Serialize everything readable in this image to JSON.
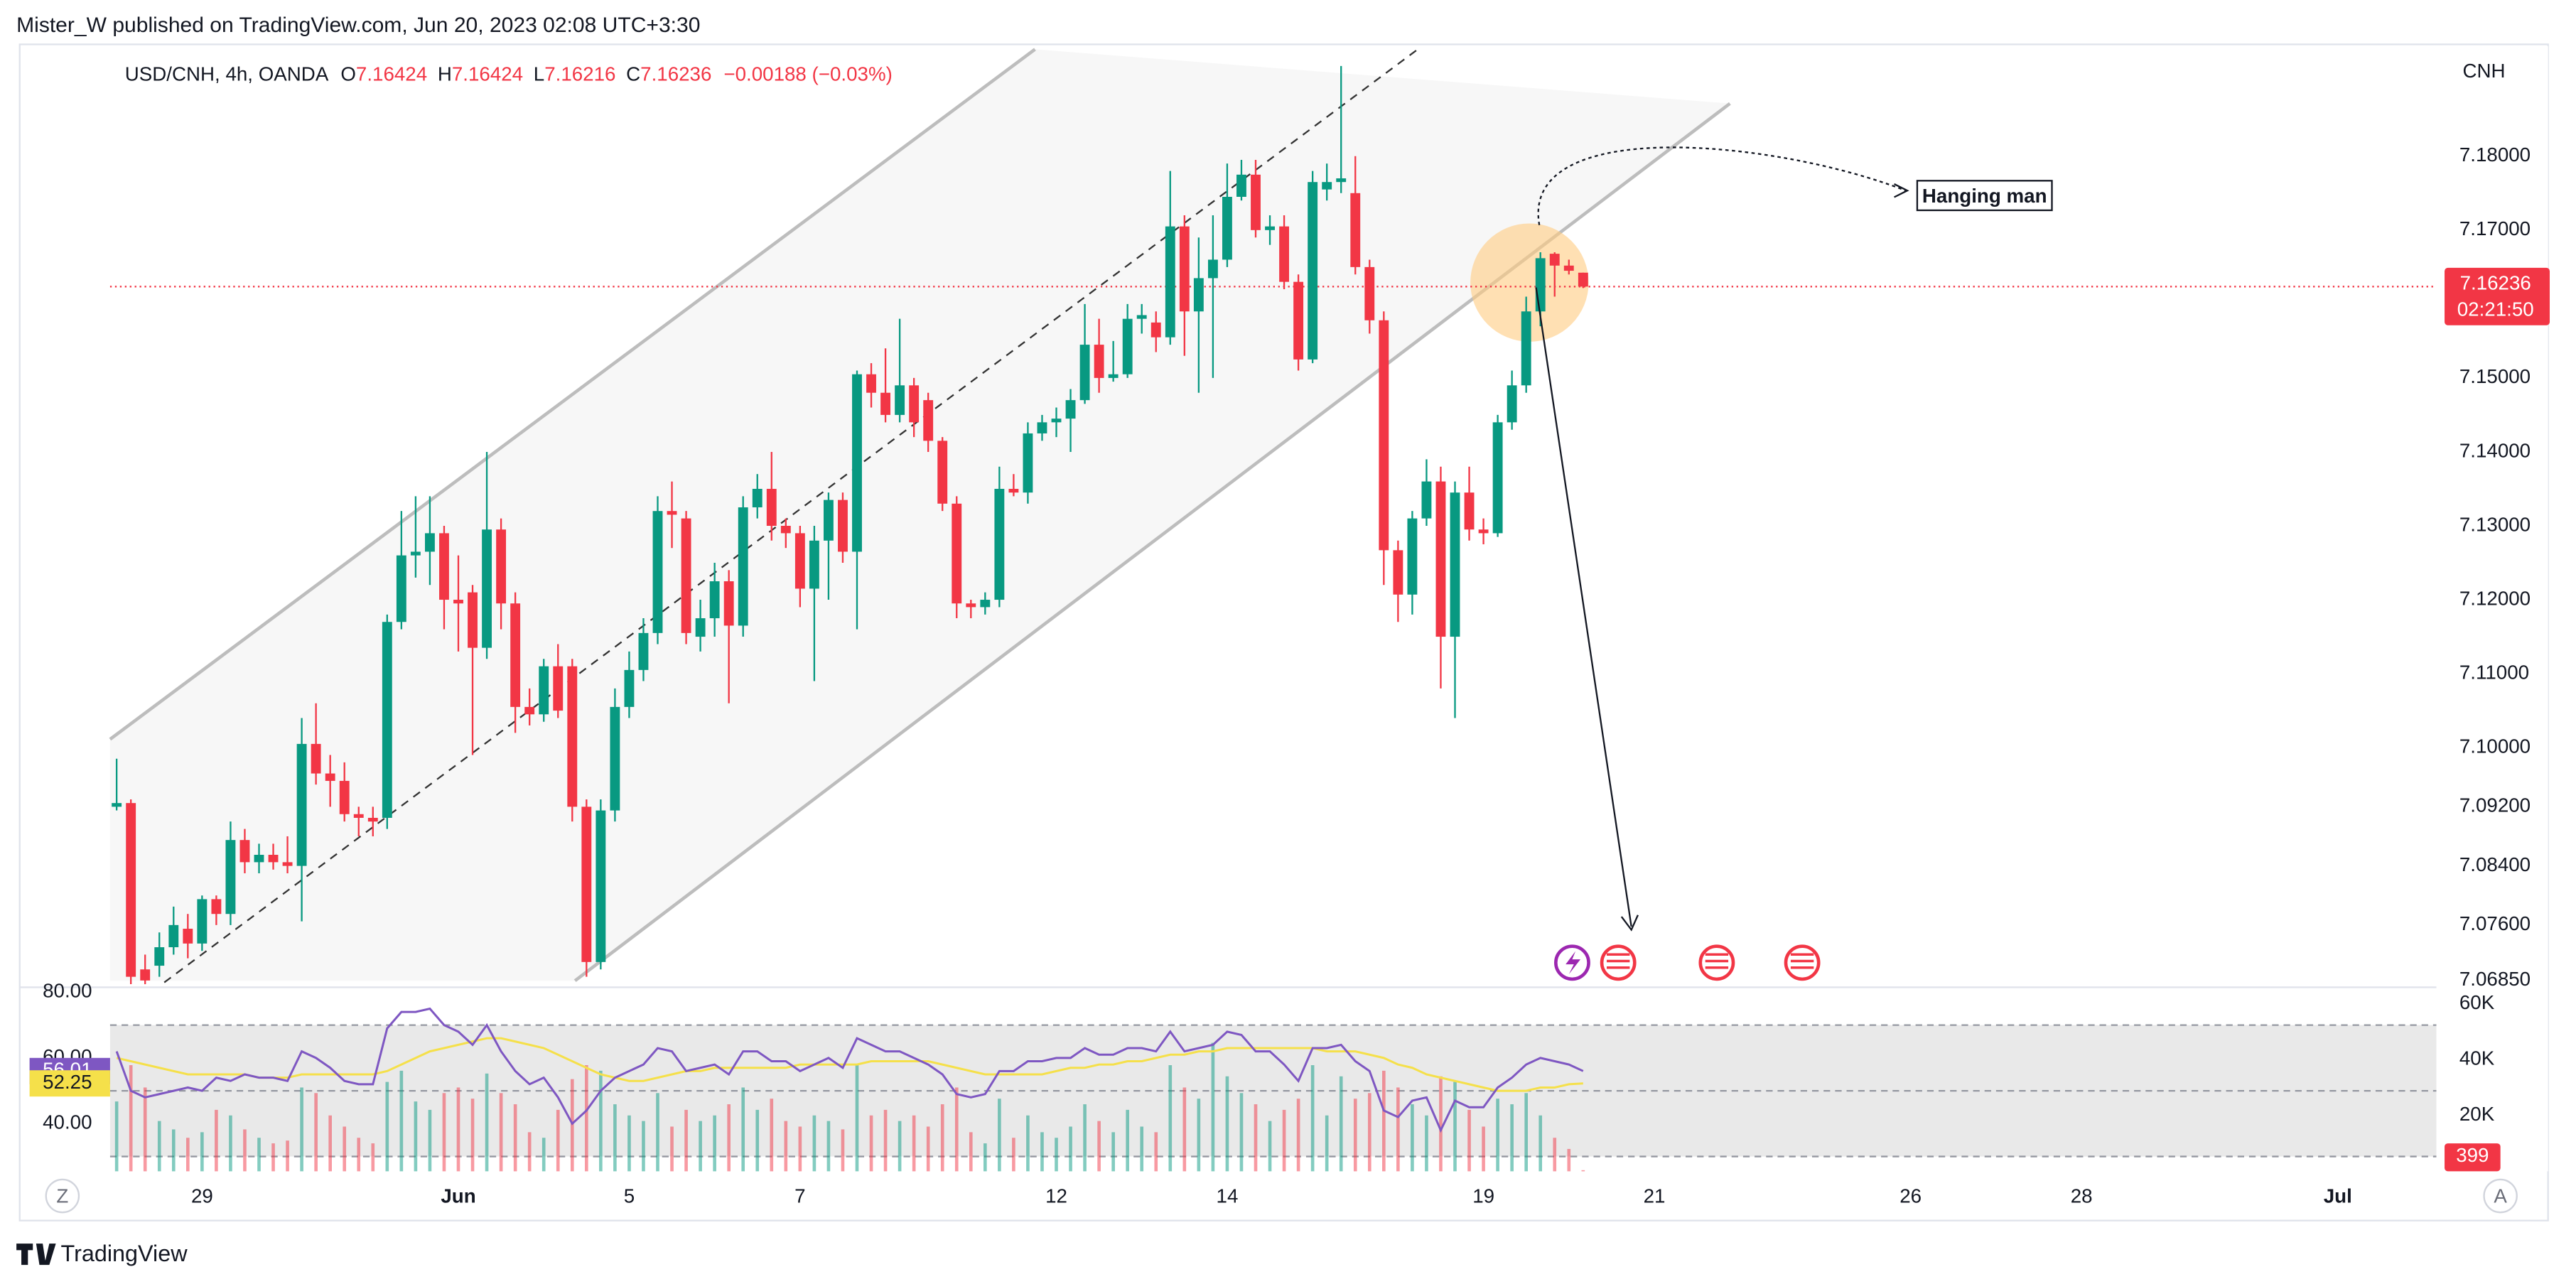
{
  "header": {
    "attribution": "Mister_W published on TradingView.com, Jun 20, 2023 02:08 UTC+3:30",
    "symbol": "USD/CNH, 4h, OANDA",
    "ohlc_letters": [
      "O",
      "H",
      "L",
      "C"
    ],
    "change": "−0.00188 (−0.03%)"
  },
  "chart_data": {
    "type": "candlestick",
    "currency": "CNH",
    "up_color": "#089981",
    "down_color": "#f23645",
    "grid": true,
    "candles": [
      [
        7.092,
        7.0985,
        7.0915,
        7.0925
      ],
      [
        7.0925,
        7.093,
        7.068,
        7.069
      ],
      [
        7.07,
        7.072,
        7.068,
        7.0685
      ],
      [
        7.0705,
        7.075,
        7.069,
        7.073
      ],
      [
        7.073,
        7.0785,
        7.072,
        7.076
      ],
      [
        7.0755,
        7.0775,
        7.0715,
        7.0735
      ],
      [
        7.0735,
        7.08,
        7.0725,
        7.0795
      ],
      [
        7.0795,
        7.08,
        7.076,
        7.0775
      ],
      [
        7.0775,
        7.09,
        7.076,
        7.0875
      ],
      [
        7.0875,
        7.089,
        7.083,
        7.0845
      ],
      [
        7.0845,
        7.087,
        7.083,
        7.0855
      ],
      [
        7.0855,
        7.087,
        7.0835,
        7.0845
      ],
      [
        7.0845,
        7.088,
        7.083,
        7.084
      ],
      [
        7.084,
        7.104,
        7.0765,
        7.1005
      ],
      [
        7.1005,
        7.106,
        7.095,
        7.0965
      ],
      [
        7.0965,
        7.099,
        7.092,
        7.0955
      ],
      [
        7.0955,
        7.098,
        7.09,
        7.091
      ],
      [
        7.091,
        7.092,
        7.088,
        7.0905
      ],
      [
        7.0905,
        7.092,
        7.088,
        7.09
      ],
      [
        7.0905,
        7.118,
        7.089,
        7.117
      ],
      [
        7.117,
        7.132,
        7.116,
        7.126
      ],
      [
        7.126,
        7.134,
        7.123,
        7.1265
      ],
      [
        7.1265,
        7.134,
        7.122,
        7.129
      ],
      [
        7.129,
        7.13,
        7.116,
        7.12
      ],
      [
        7.12,
        7.126,
        7.113,
        7.1195
      ],
      [
        7.121,
        7.122,
        7.099,
        7.1135
      ],
      [
        7.1135,
        7.14,
        7.112,
        7.1295
      ],
      [
        7.1295,
        7.131,
        7.116,
        7.1195
      ],
      [
        7.1195,
        7.121,
        7.102,
        7.1055
      ],
      [
        7.1055,
        7.108,
        7.103,
        7.1045
      ],
      [
        7.1045,
        7.112,
        7.1035,
        7.111
      ],
      [
        7.111,
        7.114,
        7.104,
        7.105
      ],
      [
        7.111,
        7.112,
        7.09,
        7.092
      ],
      [
        7.092,
        7.093,
        7.069,
        7.071
      ],
      [
        7.071,
        7.093,
        7.07,
        7.0915
      ],
      [
        7.0915,
        7.108,
        7.09,
        7.1055
      ],
      [
        7.1055,
        7.113,
        7.104,
        7.1105
      ],
      [
        7.1105,
        7.1175,
        7.109,
        7.1155
      ],
      [
        7.1155,
        7.134,
        7.114,
        7.132
      ],
      [
        7.132,
        7.136,
        7.127,
        7.1315
      ],
      [
        7.131,
        7.132,
        7.114,
        7.1155
      ],
      [
        7.115,
        7.12,
        7.113,
        7.1175
      ],
      [
        7.1175,
        7.125,
        7.115,
        7.1225
      ],
      [
        7.1225,
        7.124,
        7.106,
        7.1165
      ],
      [
        7.1165,
        7.134,
        7.115,
        7.1325
      ],
      [
        7.1325,
        7.137,
        7.131,
        7.135
      ],
      [
        7.135,
        7.14,
        7.128,
        7.13
      ],
      [
        7.13,
        7.131,
        7.127,
        7.129
      ],
      [
        7.129,
        7.13,
        7.119,
        7.1215
      ],
      [
        7.1215,
        7.13,
        7.109,
        7.128
      ],
      [
        7.128,
        7.1345,
        7.12,
        7.1335
      ],
      [
        7.1335,
        7.1345,
        7.125,
        7.1265
      ],
      [
        7.1265,
        7.151,
        7.116,
        7.1505
      ],
      [
        7.1505,
        7.152,
        7.146,
        7.148
      ],
      [
        7.148,
        7.154,
        7.144,
        7.145
      ],
      [
        7.145,
        7.158,
        7.144,
        7.149
      ],
      [
        7.149,
        7.15,
        7.142,
        7.144
      ],
      [
        7.147,
        7.148,
        7.14,
        7.1415
      ],
      [
        7.1415,
        7.142,
        7.132,
        7.133
      ],
      [
        7.133,
        7.134,
        7.1175,
        7.1195
      ],
      [
        7.1195,
        7.12,
        7.1175,
        7.119
      ],
      [
        7.119,
        7.121,
        7.118,
        7.12
      ],
      [
        7.12,
        7.138,
        7.119,
        7.135
      ],
      [
        7.135,
        7.137,
        7.134,
        7.1345
      ],
      [
        7.1345,
        7.144,
        7.133,
        7.1425
      ],
      [
        7.1425,
        7.145,
        7.1415,
        7.144
      ],
      [
        7.144,
        7.146,
        7.142,
        7.1445
      ],
      [
        7.1445,
        7.1485,
        7.14,
        7.147
      ],
      [
        7.147,
        7.16,
        7.1465,
        7.1545
      ],
      [
        7.1545,
        7.158,
        7.148,
        7.15
      ],
      [
        7.15,
        7.155,
        7.1495,
        7.1505
      ],
      [
        7.1505,
        7.16,
        7.15,
        7.158
      ],
      [
        7.158,
        7.16,
        7.156,
        7.1585
      ],
      [
        7.1575,
        7.159,
        7.1535,
        7.1555
      ],
      [
        7.1555,
        7.178,
        7.1545,
        7.1705
      ],
      [
        7.1705,
        7.172,
        7.153,
        7.159
      ],
      [
        7.159,
        7.169,
        7.148,
        7.1635
      ],
      [
        7.1635,
        7.172,
        7.15,
        7.166
      ],
      [
        7.166,
        7.179,
        7.165,
        7.1745
      ],
      [
        7.1745,
        7.1795,
        7.174,
        7.1775
      ],
      [
        7.1775,
        7.1795,
        7.169,
        7.17
      ],
      [
        7.17,
        7.172,
        7.168,
        7.1705
      ],
      [
        7.1705,
        7.172,
        7.162,
        7.163
      ],
      [
        7.163,
        7.164,
        7.151,
        7.1525
      ],
      [
        7.1525,
        7.178,
        7.152,
        7.1765
      ],
      [
        7.1755,
        7.179,
        7.174,
        7.1765
      ],
      [
        7.1765,
        7.1922,
        7.175,
        7.177
      ],
      [
        7.175,
        7.18,
        7.164,
        7.165
      ],
      [
        7.165,
        7.166,
        7.156,
        7.1578
      ],
      [
        7.1578,
        7.159,
        7.122,
        7.1267
      ],
      [
        7.1267,
        7.128,
        7.117,
        7.1207
      ],
      [
        7.1207,
        7.132,
        7.118,
        7.131
      ],
      [
        7.131,
        7.139,
        7.13,
        7.136
      ],
      [
        7.136,
        7.138,
        7.108,
        7.115
      ],
      [
        7.115,
        7.136,
        7.104,
        7.1345
      ],
      [
        7.1345,
        7.138,
        7.128,
        7.1295
      ],
      [
        7.1295,
        7.131,
        7.1275,
        7.129
      ],
      [
        7.129,
        7.145,
        7.1285,
        7.144
      ],
      [
        7.144,
        7.151,
        7.143,
        7.149
      ],
      [
        7.149,
        7.161,
        7.148,
        7.159
      ],
      [
        7.159,
        7.167,
        7.157,
        7.1662
      ],
      [
        7.1668,
        7.167,
        7.161,
        7.1652
      ],
      [
        7.1652,
        7.166,
        7.164,
        7.1645
      ],
      [
        7.16424,
        7.16424,
        7.16216,
        7.16236
      ]
    ],
    "ylim": [
      7.1949,
      7.0678
    ],
    "yticks": [
      {
        "value": 7.18,
        "label": "7.18000"
      },
      {
        "value": 7.17,
        "label": "7.17000"
      },
      {
        "value": 7.15,
        "label": "7.15000"
      },
      {
        "value": 7.14,
        "label": "7.14000"
      },
      {
        "value": 7.13,
        "label": "7.13000"
      },
      {
        "value": 7.12,
        "label": "7.12000"
      },
      {
        "value": 7.11,
        "label": "7.11000"
      },
      {
        "value": 7.1,
        "label": "7.10000"
      },
      {
        "value": 7.092,
        "label": "7.09200"
      },
      {
        "value": 7.084,
        "label": "7.08400"
      },
      {
        "value": 7.076,
        "label": "7.07600"
      },
      {
        "value": 7.0685,
        "label": "7.06850"
      }
    ],
    "xlim": [
      -2.135,
      26.154
    ],
    "xticks": [
      {
        "value": 0,
        "label": "29"
      },
      {
        "value": 3,
        "label": "Jun"
      },
      {
        "value": 5,
        "label": "5"
      },
      {
        "value": 7,
        "label": "7"
      },
      {
        "value": 10,
        "label": "12"
      },
      {
        "value": 12,
        "label": "14"
      },
      {
        "value": 15,
        "label": "19"
      },
      {
        "value": 17,
        "label": "21"
      },
      {
        "value": 20,
        "label": "26"
      },
      {
        "value": 22,
        "label": "28"
      },
      {
        "value": 25,
        "label": "Jul"
      }
    ],
    "countdown": "02:21:50",
    "annotation": "Hanging man",
    "rsi": {
      "color": "#7e57c2",
      "ma_color": "#f5e04a",
      "ylim": [
        25.5,
        80.5
      ],
      "yticks": [
        {
          "value": 80,
          "label": "80.00"
        },
        {
          "value": 60,
          "label": "60.00"
        },
        {
          "value": 40,
          "label": "40.00"
        }
      ],
      "levels": [
        70,
        50,
        30
      ],
      "values": [
        62,
        50,
        48,
        49,
        50,
        51,
        50,
        54,
        53,
        55,
        54,
        54,
        53,
        62,
        60,
        57,
        53,
        52,
        52,
        69,
        74,
        74,
        75,
        70,
        68,
        64,
        70,
        62,
        56,
        52,
        54,
        48,
        40,
        44,
        50,
        54,
        56,
        58,
        63,
        62,
        56,
        57,
        58,
        55,
        62,
        62,
        59,
        59,
        56,
        58,
        60,
        57,
        66,
        64,
        62,
        62,
        60,
        58,
        55,
        49,
        48,
        49,
        56,
        56,
        59,
        59,
        60,
        60,
        63,
        61,
        61,
        63,
        63,
        62,
        68,
        62,
        63,
        64,
        68,
        67,
        62,
        62,
        58,
        53,
        63,
        63,
        64,
        59,
        56,
        44,
        42,
        47,
        48,
        38,
        47,
        45,
        45,
        51,
        54,
        58,
        60,
        59,
        58,
        56.01
      ],
      "ma": [
        60,
        59,
        58,
        57,
        56,
        55,
        55,
        55,
        55,
        55,
        54,
        54,
        54,
        55,
        55,
        55,
        55,
        55,
        55,
        56,
        58,
        60,
        62,
        63,
        64,
        65,
        66,
        66,
        65,
        64,
        63,
        61,
        59,
        57,
        55,
        54,
        53,
        53,
        54,
        55,
        56,
        56,
        57,
        57,
        57,
        57,
        57,
        57,
        58,
        58,
        58,
        58,
        58,
        59,
        59,
        59,
        59,
        59,
        58,
        57,
        56,
        55,
        55,
        55,
        55,
        55,
        56,
        57,
        57,
        58,
        58,
        59,
        59,
        60,
        61,
        61,
        62,
        62,
        63,
        63,
        63,
        63,
        63,
        63,
        63,
        62,
        62,
        62,
        61,
        60,
        58,
        57,
        55,
        54,
        53,
        52,
        51,
        50,
        50,
        50,
        51,
        51,
        52,
        52.25
      ]
    },
    "volume": {
      "ylim": [
        0,
        64700
      ],
      "yticks": [
        {
          "value": 60000,
          "label": "60K"
        },
        {
          "value": 40000,
          "label": "40K"
        },
        {
          "value": 20000,
          "label": "20K"
        }
      ],
      "values": [
        25000,
        38000,
        30000,
        18000,
        15000,
        12000,
        14000,
        22000,
        20000,
        15000,
        12000,
        10000,
        11000,
        30000,
        28000,
        20000,
        16000,
        12000,
        10000,
        32000,
        36000,
        25000,
        22000,
        28000,
        30000,
        26000,
        35000,
        28000,
        24000,
        14000,
        12000,
        22000,
        33000,
        38000,
        36000,
        24000,
        20000,
        18000,
        28000,
        16000,
        22000,
        18000,
        20000,
        24000,
        30000,
        22000,
        26000,
        18000,
        16000,
        20000,
        18000,
        15000,
        38000,
        20000,
        22000,
        18000,
        20000,
        16000,
        24000,
        30000,
        14000,
        10000,
        26000,
        12000,
        20000,
        14000,
        12000,
        16000,
        24000,
        18000,
        14000,
        22000,
        16000,
        14000,
        38000,
        30000,
        26000,
        46000,
        34000,
        28000,
        24000,
        18000,
        22000,
        26000,
        38000,
        20000,
        34000,
        26000,
        28000,
        36000,
        30000,
        24000,
        20000,
        34000,
        32000,
        22000,
        16000,
        26000,
        24000,
        28000,
        20000,
        12000,
        8000,
        399
      ]
    }
  },
  "footer": {
    "brand": "TradingView",
    "left_button": "Z",
    "right_button": "A"
  }
}
